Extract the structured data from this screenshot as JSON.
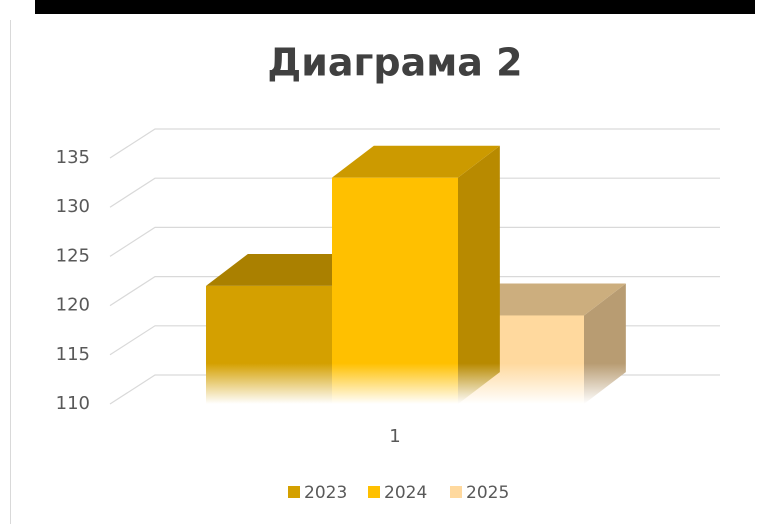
{
  "chart_data": {
    "type": "bar3d",
    "title": "Диаграма 2",
    "categories": [
      "1"
    ],
    "series": [
      {
        "name": "2023",
        "color": "#d4a000",
        "values": [
          122
        ]
      },
      {
        "name": "2024",
        "color": "#ffc000",
        "values": [
          133
        ]
      },
      {
        "name": "2025",
        "color": "#ffd99e",
        "values": [
          119
        ]
      }
    ],
    "ylim": [
      110,
      135
    ],
    "yticks": [
      110,
      115,
      120,
      125,
      130,
      135
    ],
    "grid": true,
    "legend": "bottom"
  }
}
